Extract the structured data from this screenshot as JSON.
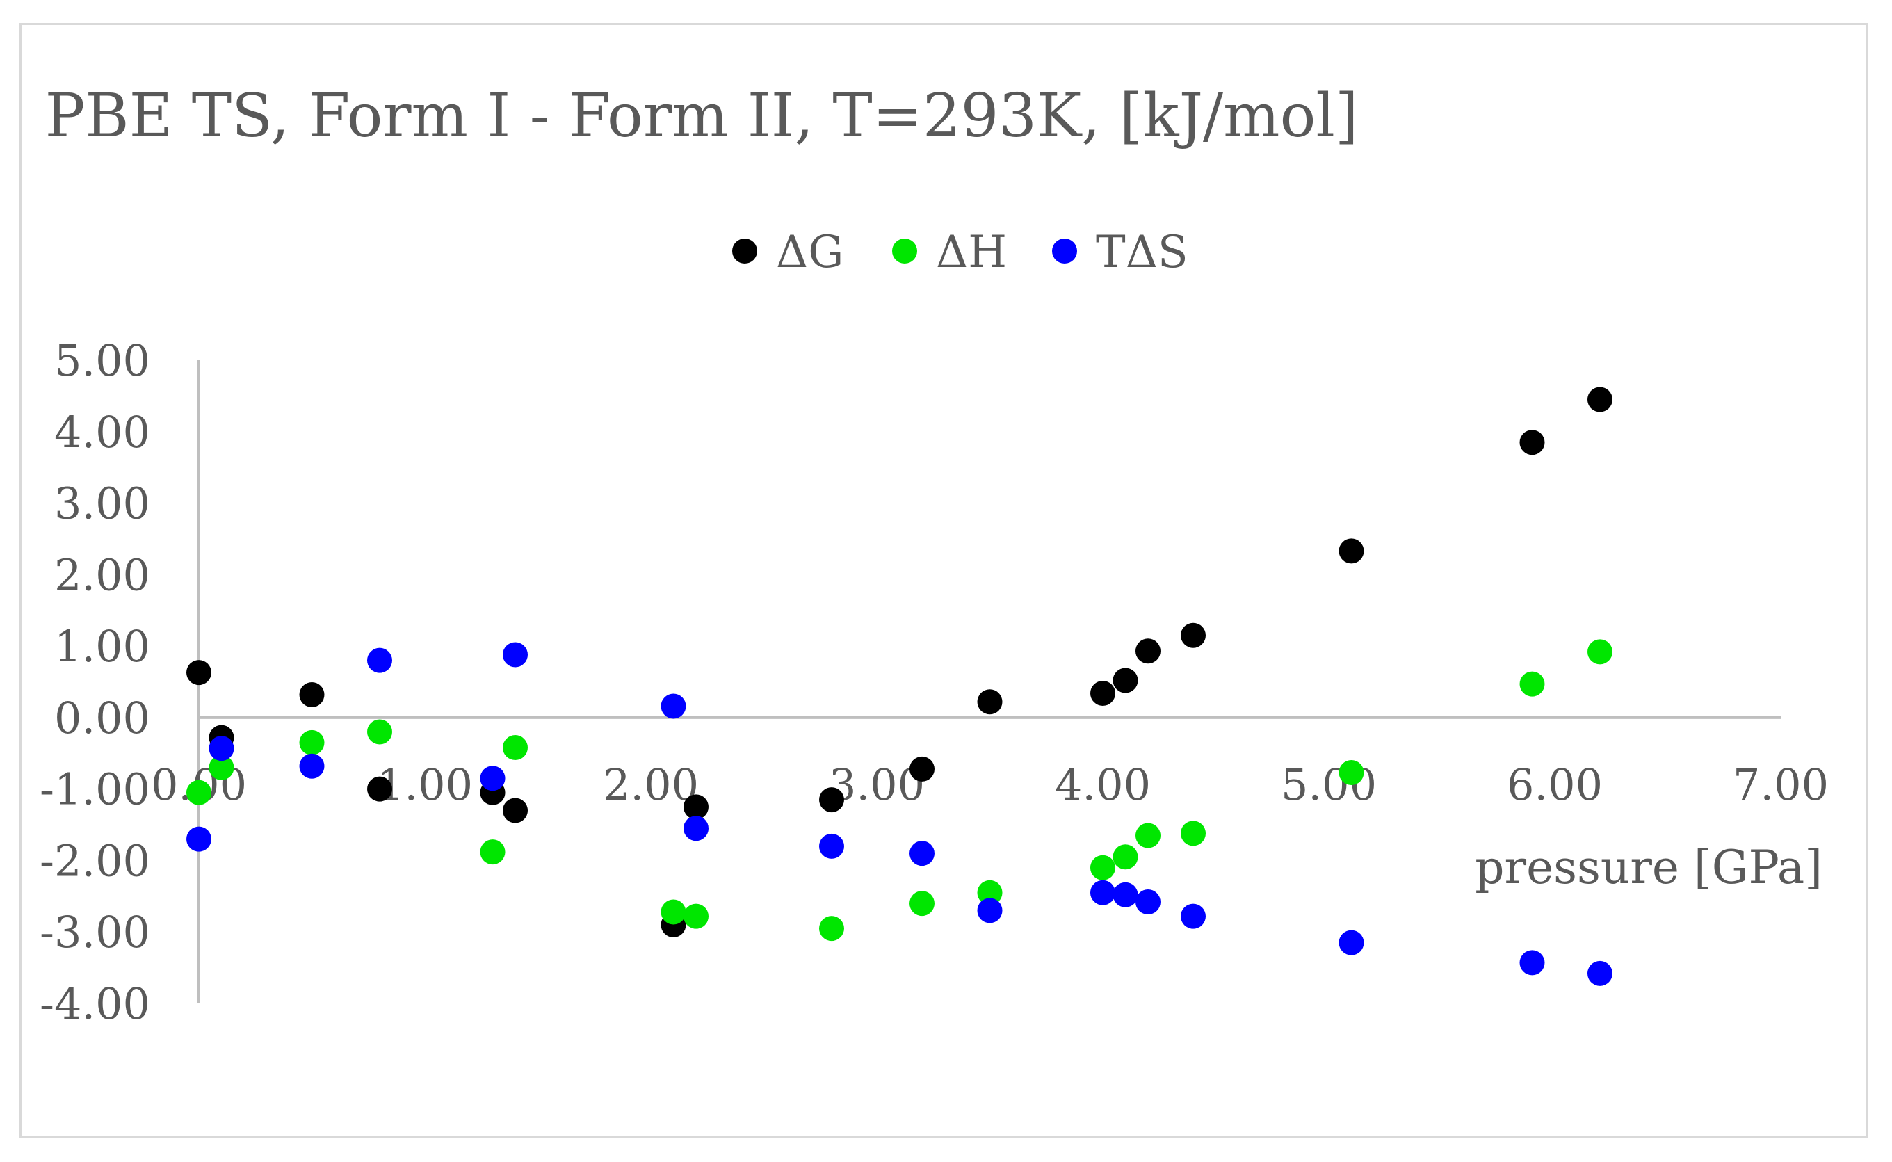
{
  "chart_data": {
    "type": "scatter",
    "title": "PBE TS, Form I - Form II, T=293K, [kJ/mol]",
    "xlabel": "pressure [GPa]",
    "ylabel": "",
    "xlim": [
      0,
      7
    ],
    "ylim": [
      -4,
      5
    ],
    "x_ticks": [
      "0.00",
      "1.00",
      "2.00",
      "3.00",
      "4.00",
      "5.00",
      "6.00",
      "7.00"
    ],
    "y_ticks": [
      "5.00",
      "4.00",
      "3.00",
      "2.00",
      "1.00",
      "0.00",
      "-1.00",
      "-2.00",
      "-3.00",
      "-4.00"
    ],
    "grid": false,
    "legend_position": "top",
    "series": [
      {
        "name": "ΔG",
        "color": "#000000",
        "points": [
          [
            0.0,
            0.63
          ],
          [
            0.1,
            -0.28
          ],
          [
            0.5,
            0.32
          ],
          [
            0.8,
            -1.0
          ],
          [
            1.3,
            -1.05
          ],
          [
            1.4,
            -1.3
          ],
          [
            2.1,
            -2.9
          ],
          [
            2.2,
            -1.25
          ],
          [
            2.8,
            -1.15
          ],
          [
            3.2,
            -0.72
          ],
          [
            3.5,
            0.22
          ],
          [
            4.0,
            0.34
          ],
          [
            4.1,
            0.52
          ],
          [
            4.2,
            0.93
          ],
          [
            4.4,
            1.15
          ],
          [
            5.1,
            2.33
          ],
          [
            5.9,
            3.85
          ],
          [
            6.2,
            4.45
          ]
        ]
      },
      {
        "name": "ΔH",
        "color": "#00e600",
        "points": [
          [
            0.0,
            -1.05
          ],
          [
            0.1,
            -0.7
          ],
          [
            0.5,
            -0.35
          ],
          [
            0.8,
            -0.2
          ],
          [
            1.3,
            -1.88
          ],
          [
            1.4,
            -0.42
          ],
          [
            2.1,
            -2.72
          ],
          [
            2.2,
            -2.78
          ],
          [
            2.8,
            -2.95
          ],
          [
            3.2,
            -2.6
          ],
          [
            3.5,
            -2.45
          ],
          [
            4.0,
            -2.1
          ],
          [
            4.1,
            -1.95
          ],
          [
            4.2,
            -1.65
          ],
          [
            4.4,
            -1.62
          ],
          [
            5.1,
            -0.77
          ],
          [
            5.9,
            0.47
          ],
          [
            6.2,
            0.92
          ]
        ]
      },
      {
        "name": "TΔS",
        "color": "#0000ff",
        "points": [
          [
            0.0,
            -1.7
          ],
          [
            0.1,
            -0.43
          ],
          [
            0.5,
            -0.68
          ],
          [
            0.8,
            0.8
          ],
          [
            1.3,
            -0.85
          ],
          [
            1.4,
            0.88
          ],
          [
            2.1,
            0.16
          ],
          [
            2.2,
            -1.55
          ],
          [
            2.8,
            -1.8
          ],
          [
            3.2,
            -1.9
          ],
          [
            3.5,
            -2.7
          ],
          [
            4.0,
            -2.45
          ],
          [
            4.1,
            -2.48
          ],
          [
            4.2,
            -2.58
          ],
          [
            4.4,
            -2.78
          ],
          [
            5.1,
            -3.15
          ],
          [
            5.9,
            -3.43
          ],
          [
            6.2,
            -3.58
          ]
        ]
      }
    ]
  }
}
